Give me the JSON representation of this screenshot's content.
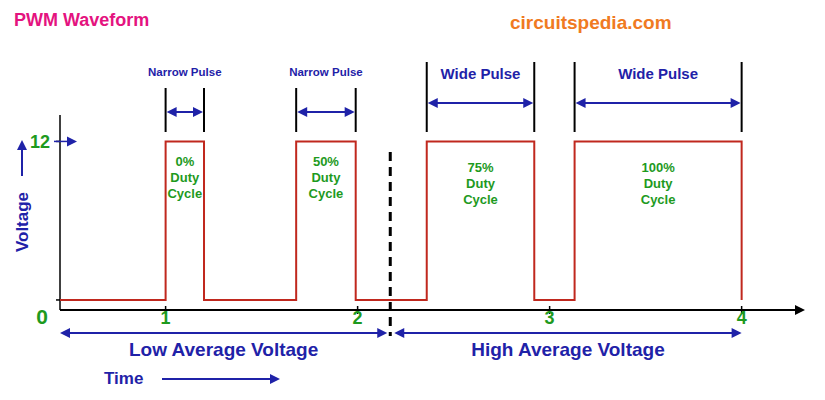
{
  "chart_data": {
    "type": "line",
    "title": "PWM Waveform",
    "source": "circuitspedia.com",
    "xlabel": "Time",
    "ylabel": "Voltage",
    "x": [
      0.45,
      1.0,
      1.0,
      1.2,
      1.2,
      1.68,
      1.68,
      1.99,
      1.99,
      2.36,
      2.36,
      2.92,
      2.92,
      3.13,
      3.13,
      4.0,
      4.0
    ],
    "values": [
      0,
      0,
      12,
      12,
      0,
      0,
      12,
      12,
      0,
      0,
      12,
      12,
      0,
      0,
      12,
      12,
      0
    ],
    "color": "#c0281e",
    "xlim": [
      0.45,
      4.33
    ],
    "ylim": [
      -0.76,
      14
    ],
    "xticks": [
      1,
      2,
      3,
      4
    ],
    "yticks": [
      0,
      12
    ],
    "annotations": [
      {
        "text": "Narrow Pulse",
        "x": [
          1.0,
          1.2
        ],
        "duty": [
          "0%",
          "Duty",
          "Cycle"
        ]
      },
      {
        "text": "Narrow Pulse",
        "x": [
          1.68,
          1.99
        ],
        "duty": [
          "50%",
          "Duty",
          "Cycle"
        ]
      },
      {
        "text": "Wide Pulse",
        "x": [
          2.36,
          2.92
        ],
        "duty": [
          "75%",
          "Duty",
          "Cycle"
        ]
      },
      {
        "text": "Wide Pulse",
        "x": [
          3.13,
          4.0
        ],
        "duty": [
          "100%",
          "Duty",
          "Cycle"
        ]
      }
    ],
    "divider": 2.17,
    "regions": [
      "Low Average Voltage",
      "High Average Voltage"
    ]
  }
}
